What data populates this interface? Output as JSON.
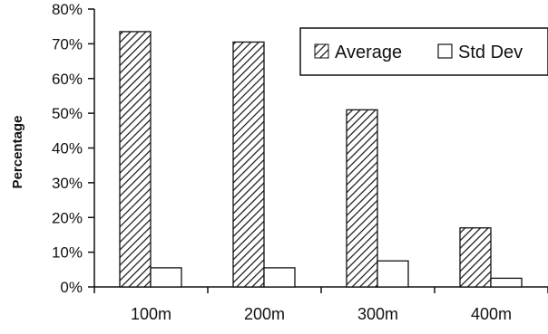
{
  "chart_data": {
    "type": "bar",
    "title": "",
    "xlabel": "",
    "ylabel": "Percentage",
    "categories": [
      "100m",
      "200m",
      "300m",
      "400m"
    ],
    "series": [
      {
        "name": "Average",
        "values": [
          73.5,
          70.5,
          51.0,
          17.0
        ],
        "pattern": "diagonal-hatch"
      },
      {
        "name": "Std Dev",
        "values": [
          5.5,
          5.5,
          7.5,
          2.5
        ],
        "pattern": "solid-white"
      }
    ],
    "ylim": [
      0,
      80
    ],
    "yticks": [
      "0%",
      "10%",
      "20%",
      "30%",
      "40%",
      "50%",
      "60%",
      "70%",
      "80%"
    ],
    "grid": false,
    "legend_position": "top-right",
    "colors": {
      "stroke": "#111111",
      "fill": "#ffffff"
    }
  }
}
